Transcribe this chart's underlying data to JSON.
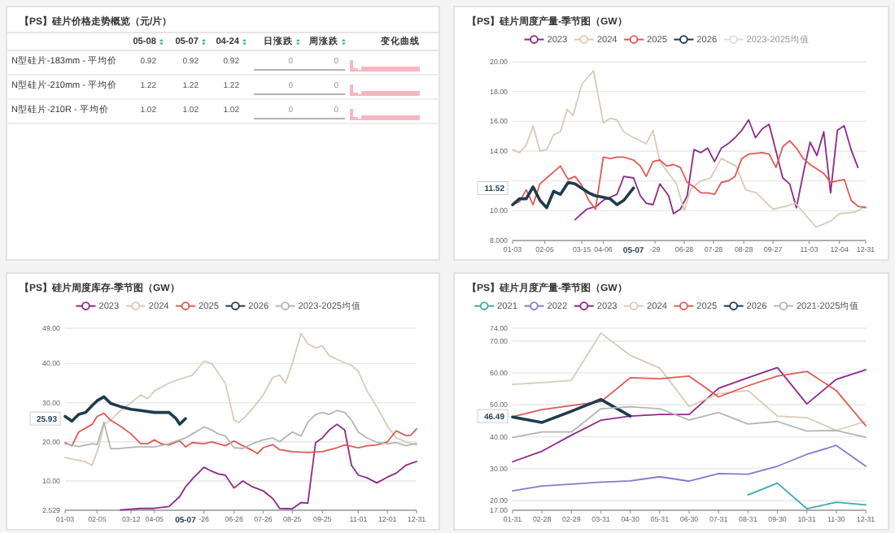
{
  "chart_data": [
    {
      "type": "other",
      "title": "【PS】硅片价格走势概览（元/片）",
      "categories": [
        "05-08",
        "05-07",
        "04-24",
        "日涨跌",
        "周涨跌",
        "变化曲线"
      ],
      "y_categories": [
        "N型硅片-183mm - 平均价",
        "N型硅片-210mm - 平均价",
        "N型硅片-210R - 平均价"
      ],
      "cell_labels": [
        [
          "0.92",
          "0.92",
          "0.92",
          "0",
          "0"
        ],
        [
          "1.22",
          "1.22",
          "1.22",
          "0",
          "0"
        ],
        [
          "1.02",
          "1.02",
          "1.02",
          "0",
          "0"
        ]
      ]
    },
    {
      "type": "line",
      "title": "【PS】硅片周度产量-季节图（GW）",
      "legend": "top",
      "grid": "y",
      "xlim": [
        "--01-03",
        "--12-31"
      ],
      "xticks": [
        {
          "value": "--01-03",
          "label": "01-03"
        },
        {
          "value": "--02-05",
          "label": "02-05"
        },
        {
          "value": "--03-15",
          "label": "03-15"
        },
        {
          "value": "--04-06",
          "label": "04-06"
        },
        {
          "value": "--05-29",
          "label": "-29"
        },
        {
          "value": "--06-28",
          "label": "06-28"
        },
        {
          "value": "--07-28",
          "label": "07-28"
        },
        {
          "value": "--08-28",
          "label": "08-28"
        },
        {
          "value": "--09-27",
          "label": "09-27"
        },
        {
          "value": "--11-03",
          "label": "11-03"
        },
        {
          "value": "--12-04",
          "label": "12-04"
        },
        {
          "value": "--12-31",
          "label": "12-31"
        }
      ],
      "ylim": [
        8,
        20
      ],
      "yticks": [
        {
          "value": 8,
          "label": "8.000"
        },
        {
          "value": 10,
          "label": "10.00"
        },
        {
          "value": 12,
          "label": null
        },
        {
          "value": 14,
          "label": "14.00"
        },
        {
          "value": 16,
          "label": "16.00"
        },
        {
          "value": 18,
          "label": "18.00"
        },
        {
          "value": 20,
          "label": "20.00"
        }
      ],
      "annotations": [
        "11.52",
        "05-07"
      ],
      "series": [
        {
          "name": "2023",
          "color": "#8e2a8a",
          "x": [
            "--03-08",
            "--03-20",
            "--03-30",
            "--04-06",
            "--04-20",
            "--04-27",
            "--05-07",
            "--05-14",
            "--05-20",
            "--05-27",
            "--06-03",
            "--06-12",
            "--06-17",
            "--06-24",
            "--07-01",
            "--07-08",
            "--07-15",
            "--07-22",
            "--07-29",
            "--08-05",
            "--08-12",
            "--08-19",
            "--08-26",
            "--09-02",
            "--09-09",
            "--09-16",
            "--09-23",
            "--09-30",
            "--10-07",
            "--10-14",
            "--10-21",
            "--10-28",
            "--11-04",
            "--11-11",
            "--11-18",
            "--11-25",
            "--12-02",
            "--12-09",
            "--12-16",
            "--12-23"
          ],
          "values": [
            9.4,
            10.1,
            10.3,
            10.7,
            11.1,
            12.3,
            12.2,
            11.0,
            10.5,
            10.4,
            11.8,
            11.0,
            9.8,
            10.1,
            11.0,
            14.1,
            13.9,
            14.2,
            13.3,
            14.2,
            14.5,
            14.9,
            15.4,
            16.1,
            14.9,
            15.5,
            15.8,
            14.0,
            12.2,
            11.8,
            10.2,
            12.5,
            14.6,
            13.7,
            15.3,
            11.2,
            15.4,
            15.7,
            14.1,
            12.9
          ]
        },
        {
          "name": "2024",
          "color": "#d9cbb5",
          "x": [
            "--01-03",
            "--01-10",
            "--01-17",
            "--01-24",
            "--01-31",
            "--02-07",
            "--02-14",
            "--02-21",
            "--02-28",
            "--03-06",
            "--03-15",
            "--03-27",
            "--04-06",
            "--04-13",
            "--04-20",
            "--04-27",
            "--05-07",
            "--05-20",
            "--05-27",
            "--06-03",
            "--06-12",
            "--06-20",
            "--06-28",
            "--07-05",
            "--07-15",
            "--07-25",
            "--08-05",
            "--08-20",
            "--08-30",
            "--09-10",
            "--09-27",
            "--10-10",
            "--10-20",
            "--11-10",
            "--11-25",
            "--12-04",
            "--12-20",
            "--12-31"
          ],
          "values": [
            14.1,
            13.9,
            14.4,
            15.7,
            14.0,
            14.1,
            15.1,
            15.3,
            16.8,
            16.4,
            18.5,
            19.4,
            15.9,
            16.2,
            16.1,
            15.3,
            14.9,
            14.5,
            15.4,
            13.3,
            12.5,
            11.8,
            10.0,
            11.5,
            12.0,
            12.2,
            13.5,
            13.0,
            11.4,
            11.2,
            10.1,
            10.3,
            10.5,
            8.9,
            9.3,
            9.8,
            9.9,
            10.3
          ]
        },
        {
          "name": "2025",
          "color": "#e05a55",
          "x": [
            "--01-03",
            "--01-10",
            "--01-17",
            "--01-24",
            "--01-31",
            "--02-07",
            "--02-14",
            "--02-21",
            "--03-01",
            "--03-08",
            "--03-15",
            "--03-22",
            "--03-29",
            "--04-06",
            "--04-13",
            "--04-20",
            "--04-27",
            "--05-07",
            "--05-14",
            "--05-20",
            "--05-27",
            "--06-03",
            "--06-10",
            "--06-17",
            "--06-24",
            "--07-01",
            "--07-08",
            "--07-15",
            "--07-22",
            "--07-29",
            "--08-05",
            "--08-12",
            "--08-19",
            "--08-26",
            "--09-02",
            "--09-16",
            "--09-23",
            "--09-30",
            "--10-07",
            "--10-14",
            "--10-21",
            "--10-28",
            "--11-04",
            "--11-18",
            "--11-25",
            "--12-02",
            "--12-09",
            "--12-16",
            "--12-23",
            "--12-31"
          ],
          "values": [
            10.4,
            10.6,
            11.4,
            10.4,
            11.8,
            12.2,
            12.6,
            13.0,
            12.1,
            12.3,
            11.7,
            10.7,
            10.1,
            13.6,
            13.5,
            13.6,
            13.6,
            13.4,
            13.0,
            12.3,
            13.3,
            13.4,
            13.0,
            13.1,
            12.9,
            11.9,
            11.6,
            11.2,
            11.2,
            11.1,
            11.9,
            12.0,
            12.3,
            13.5,
            13.8,
            13.9,
            13.8,
            12.9,
            14.3,
            14.7,
            14.2,
            13.5,
            13.1,
            12.5,
            11.9,
            12.0,
            12.1,
            10.7,
            10.3,
            10.2
          ]
        },
        {
          "name": "2026",
          "color": "#1f3b4d",
          "x": [
            "--01-03",
            "--01-10",
            "--01-17",
            "--01-24",
            "--01-31",
            "--02-07",
            "--02-14",
            "--02-21",
            "--03-01",
            "--03-08",
            "--03-15",
            "--03-22",
            "--03-29",
            "--04-06",
            "--04-13",
            "--04-20",
            "--04-27",
            "--05-07"
          ],
          "values": [
            10.4,
            10.8,
            10.8,
            11.6,
            10.7,
            10.2,
            11.3,
            11.1,
            11.9,
            11.8,
            11.5,
            11.2,
            11.0,
            10.9,
            10.8,
            10.4,
            10.7,
            11.52
          ]
        },
        {
          "name": "2023-2025均值",
          "color": "#dddddd"
        }
      ]
    },
    {
      "type": "line",
      "title": "【PS】硅片周度库存-季节图（GW）",
      "legend": "top",
      "grid": "y",
      "xlim": [
        "--01-03",
        "--12-31"
      ],
      "xticks": [
        {
          "value": "--01-03",
          "label": "01-03"
        },
        {
          "value": "--02-05",
          "label": "02-05"
        },
        {
          "value": "--03-12",
          "label": "03-12"
        },
        {
          "value": "--04-05",
          "label": "04-05"
        },
        {
          "value": "--05-26",
          "label": "-26"
        },
        {
          "value": "--06-26",
          "label": "06-26"
        },
        {
          "value": "--07-26",
          "label": "07-26"
        },
        {
          "value": "--08-25",
          "label": "08-25"
        },
        {
          "value": "--09-25",
          "label": "09-25"
        },
        {
          "value": "--11-01",
          "label": "11-01"
        },
        {
          "value": "--12-01",
          "label": "12-01"
        },
        {
          "value": "--12-31",
          "label": "12-31"
        }
      ],
      "ylim": [
        2.529,
        49
      ],
      "yticks": [
        2.529,
        {
          "value": 10,
          "label": "10.00"
        },
        {
          "value": 20,
          "label": "20.00"
        },
        {
          "value": 30,
          "label": "30.00"
        },
        {
          "value": 40,
          "label": "40.00"
        },
        {
          "value": 49,
          "label": "49.00"
        }
      ],
      "annotations": [
        "25.93",
        "05-07"
      ],
      "series": [
        {
          "name": "2023",
          "color": "#8e2a8a",
          "x": [
            "--03-01",
            "--03-22",
            "--04-05",
            "--04-20",
            "--05-01",
            "--05-07",
            "--05-14",
            "--05-26",
            "--06-03",
            "--06-10",
            "--06-17",
            "--06-26",
            "--07-05",
            "--07-15",
            "--07-26",
            "--08-05",
            "--08-12",
            "--08-25",
            "--09-03",
            "--09-10",
            "--09-18",
            "--09-25",
            "--10-02",
            "--10-10",
            "--10-18",
            "--10-25",
            "--11-01",
            "--11-10",
            "--11-20",
            "--12-01",
            "--12-10",
            "--12-20",
            "--12-31"
          ],
          "values": [
            2.6,
            3.0,
            3.0,
            3.5,
            6.0,
            8.5,
            10.5,
            13.5,
            12.5,
            11.8,
            11.5,
            8.2,
            10.0,
            8.5,
            7.5,
            5.5,
            3.0,
            2.9,
            4.5,
            4.3,
            19.8,
            21.0,
            23.0,
            24.5,
            23.0,
            14.0,
            11.5,
            10.8,
            9.5,
            11.0,
            12.0,
            14.0,
            15.0
          ]
        },
        {
          "name": "2024",
          "color": "#d9cbb5",
          "x": [
            "--01-03",
            "--01-24",
            "--01-31",
            "--02-07",
            "--02-12",
            "--02-19",
            "--03-01",
            "--03-12",
            "--03-22",
            "--03-29",
            "--04-05",
            "--04-20",
            "--05-01",
            "--05-14",
            "--05-26",
            "--06-03",
            "--06-10",
            "--06-17",
            "--06-26",
            "--07-01",
            "--07-08",
            "--07-20",
            "--07-26",
            "--08-05",
            "--08-12",
            "--08-18",
            "--08-25",
            "--09-03",
            "--09-10",
            "--09-18",
            "--09-25",
            "--10-02",
            "--10-15",
            "--10-25",
            "--11-01",
            "--11-10",
            "--11-20",
            "--12-01",
            "--12-10",
            "--12-20",
            "--12-31"
          ],
          "values": [
            16.0,
            14.9,
            14.0,
            19.0,
            24.5,
            25.5,
            28.0,
            30.0,
            32.0,
            31.0,
            33.0,
            35.0,
            36.0,
            37.0,
            40.6,
            40.0,
            37.5,
            35.0,
            25.5,
            25.0,
            26.5,
            30.0,
            32.0,
            36.5,
            37.0,
            35.0,
            40.0,
            47.7,
            45.0,
            44.0,
            44.5,
            42.0,
            40.5,
            39.5,
            38.0,
            33.0,
            29.0,
            24.0,
            21.0,
            20.0,
            19.2
          ]
        },
        {
          "name": "2025",
          "color": "#e05a55",
          "x": [
            "--01-03",
            "--01-10",
            "--01-17",
            "--01-31",
            "--02-05",
            "--02-12",
            "--02-19",
            "--03-01",
            "--03-12",
            "--03-22",
            "--03-29",
            "--04-05",
            "--04-12",
            "--04-20",
            "--05-01",
            "--05-07",
            "--05-14",
            "--05-26",
            "--06-03",
            "--06-10",
            "--06-17",
            "--06-26",
            "--07-05",
            "--07-15",
            "--07-20",
            "--07-26",
            "--08-05",
            "--08-12",
            "--08-25",
            "--09-10",
            "--09-25",
            "--10-10",
            "--10-18",
            "--11-01",
            "--11-10",
            "--11-20",
            "--12-01",
            "--12-10",
            "--12-20",
            "--12-25",
            "--12-31"
          ],
          "values": [
            19.8,
            19.0,
            22.5,
            24.5,
            26.5,
            27.3,
            25.5,
            24.0,
            22.0,
            19.5,
            19.5,
            20.5,
            19.5,
            19.2,
            20.3,
            18.7,
            19.8,
            19.5,
            20.0,
            19.5,
            19.0,
            20.2,
            19.0,
            17.8,
            17.0,
            18.5,
            19.3,
            18.0,
            17.5,
            17.3,
            17.5,
            18.5,
            19.2,
            18.5,
            19.0,
            19.2,
            20.0,
            22.8,
            21.6,
            21.7,
            23.3
          ]
        },
        {
          "name": "2026",
          "color": "#1f3b4d",
          "x": [
            "--01-03",
            "--01-10",
            "--01-17",
            "--01-24",
            "--01-31",
            "--02-05",
            "--02-12",
            "--02-19",
            "--03-01",
            "--03-12",
            "--03-22",
            "--04-05",
            "--04-20",
            "--04-27",
            "--05-01",
            "--05-07"
          ],
          "values": [
            26.5,
            25.3,
            27.0,
            27.5,
            29.3,
            30.5,
            31.5,
            29.8,
            29.0,
            28.3,
            28.0,
            27.5,
            27.5,
            26.0,
            24.5,
            25.93
          ]
        },
        {
          "name": "2023-2025均值",
          "color": "#b5b5b5",
          "x": [
            "--01-03",
            "--01-17",
            "--01-31",
            "--02-05",
            "--02-12",
            "--02-19",
            "--03-01",
            "--03-12",
            "--03-22",
            "--04-05",
            "--04-20",
            "--05-07",
            "--05-14",
            "--05-26",
            "--06-03",
            "--06-10",
            "--06-17",
            "--06-26",
            "--07-05",
            "--07-15",
            "--07-26",
            "--08-05",
            "--08-12",
            "--08-18",
            "--08-25",
            "--09-03",
            "--09-10",
            "--09-18",
            "--09-25",
            "--10-02",
            "--10-10",
            "--10-18",
            "--10-25",
            "--11-01",
            "--11-10",
            "--11-20",
            "--12-01",
            "--12-10",
            "--12-20",
            "--12-31"
          ],
          "values": [
            19.5,
            18.8,
            19.5,
            19.3,
            25.0,
            18.2,
            18.3,
            18.6,
            18.8,
            18.7,
            19.5,
            21.0,
            22.0,
            23.8,
            23.0,
            22.0,
            21.5,
            18.5,
            18.3,
            19.5,
            20.5,
            21.0,
            20.0,
            21.2,
            22.5,
            21.5,
            25.0,
            27.0,
            27.5,
            27.0,
            28.0,
            27.5,
            25.5,
            22.5,
            21.0,
            19.9,
            19.5,
            19.8,
            19.0,
            19.6
          ]
        }
      ]
    },
    {
      "type": "line",
      "title": "【PS】硅片月度产量-季节图（GW）",
      "legend": "top",
      "grid": "y",
      "categories": [
        "01-31",
        "02-28",
        "02-29",
        "03-31",
        "04-30",
        "05-31",
        "06-30",
        "07-31",
        "08-31",
        "09-30",
        "10-31",
        "11-30",
        "12-31"
      ],
      "ylim": [
        17,
        74
      ],
      "yticks": [
        {
          "value": 17,
          "label": "17.00"
        },
        {
          "value": 20,
          "label": "20.00"
        },
        {
          "value": 30,
          "label": "30.00"
        },
        {
          "value": 40,
          "label": "40.00"
        },
        {
          "value": 50,
          "label": "50.00"
        },
        {
          "value": 60,
          "label": "60.00"
        },
        {
          "value": 70,
          "label": "70.00"
        },
        {
          "value": 74,
          "label": "74.00"
        }
      ],
      "annotations": [
        "46.49"
      ],
      "series": [
        {
          "name": "2021",
          "color": "#3fa9a9",
          "values": [
            null,
            null,
            null,
            null,
            null,
            null,
            null,
            null,
            21.8,
            25.5,
            17.5,
            19.5,
            18.7
          ]
        },
        {
          "name": "2022",
          "color": "#8878d0",
          "values": [
            23.1,
            24.6,
            25.2,
            25.8,
            26.2,
            27.5,
            26.1,
            28.5,
            28.3,
            30.8,
            34.5,
            37.3,
            30.8
          ]
        },
        {
          "name": "2023",
          "color": "#8e2a8a",
          "values": [
            32.2,
            35.5,
            40.5,
            45.2,
            46.5,
            47.0,
            47.0,
            55.2,
            58.5,
            61.7,
            50.3,
            58.0,
            61.0
          ]
        },
        {
          "name": "2024",
          "color": "#d9cbb5",
          "values": [
            56.4,
            57.0,
            57.7,
            72.5,
            65.5,
            61.5,
            49.5,
            53.5,
            54.5,
            46.5,
            46.0,
            42.0,
            44.8
          ]
        },
        {
          "name": "2025",
          "color": "#e05a55",
          "values": [
            46.3,
            48.5,
            49.8,
            51.0,
            58.5,
            58.2,
            59.0,
            52.5,
            56.0,
            59.0,
            60.5,
            54.5,
            43.5
          ]
        },
        {
          "name": "2026",
          "color": "#1f3b4d",
          "values": [
            46.2,
            44.5,
            48.0,
            51.7,
            46.49,
            null,
            null,
            null,
            null,
            null,
            null,
            null,
            null
          ]
        },
        {
          "name": "2021-2025均值",
          "color": "#b5b5b5",
          "values": [
            39.8,
            41.5,
            41.5,
            48.8,
            49.4,
            48.8,
            45.3,
            47.6,
            44.0,
            44.8,
            41.8,
            42.0,
            39.9
          ]
        }
      ]
    }
  ]
}
